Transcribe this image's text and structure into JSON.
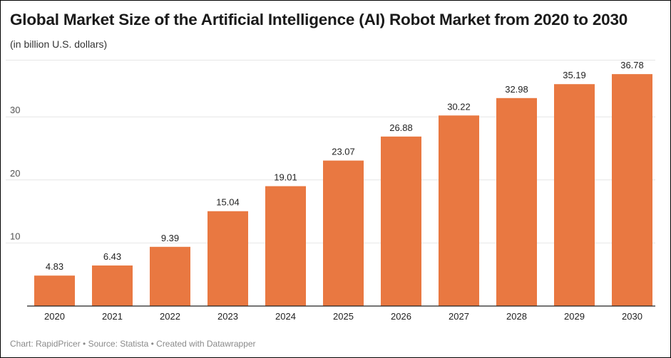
{
  "title": "Global Market Size of the Artificial Intelligence (AI) Robot Market from 2020 to 2030",
  "subtitle": "(in billion U.S. dollars)",
  "footer": "Chart: RapidPricer • Source: Statista • Created with Datawrapper",
  "colors": {
    "bar": "#E97841",
    "grid": "#e6e6e6",
    "axis": "#222222"
  },
  "chart_data": {
    "type": "bar",
    "categories": [
      "2020",
      "2021",
      "2022",
      "2023",
      "2024",
      "2025",
      "2026",
      "2027",
      "2028",
      "2029",
      "2030"
    ],
    "values": [
      4.83,
      6.43,
      9.39,
      15.04,
      19.01,
      23.07,
      26.88,
      30.22,
      32.98,
      35.19,
      36.78
    ],
    "value_labels": [
      "4.83",
      "6.43",
      "9.39",
      "15.04",
      "19.01",
      "23.07",
      "26.88",
      "30.22",
      "32.98",
      "35.19",
      "36.78"
    ],
    "y_ticks": [
      10,
      20,
      30
    ],
    "ylim": [
      0,
      39
    ],
    "grid": true,
    "legend": false
  }
}
